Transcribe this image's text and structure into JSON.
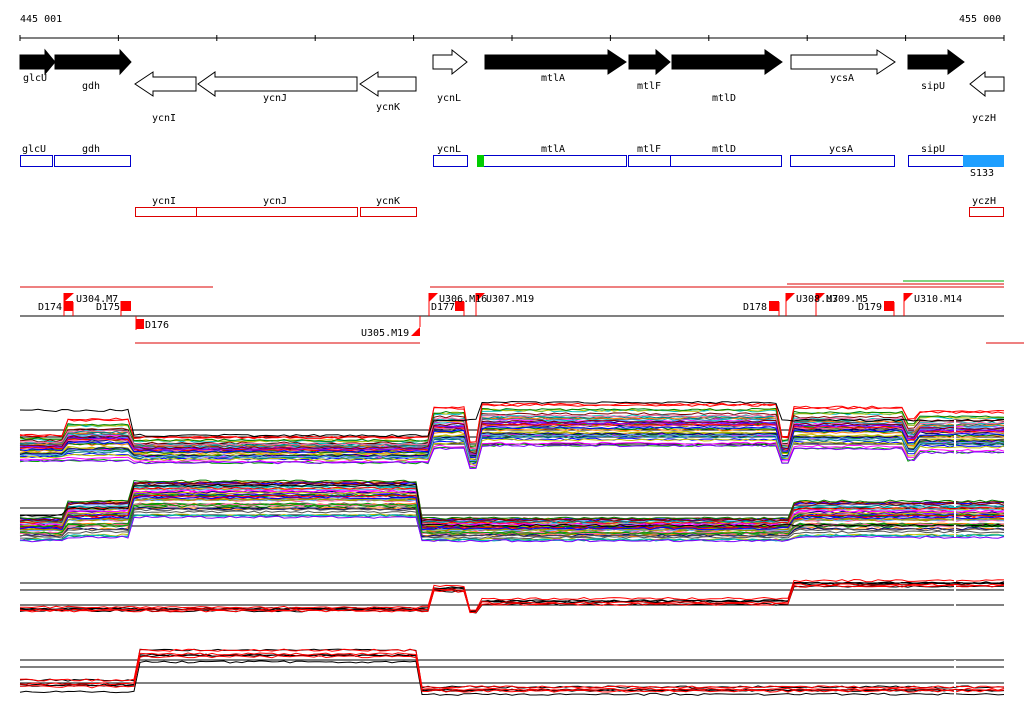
{
  "coordinates": {
    "start_label": "445 001",
    "end_label": "455 000"
  },
  "genes_top": [
    {
      "name": "glcU",
      "strand": "+",
      "fill": "#000000"
    },
    {
      "name": "gdh",
      "strand": "+",
      "fill": "#000000"
    },
    {
      "name": "ycnI",
      "strand": "-",
      "fill": "#ffffff"
    },
    {
      "name": "ycnJ",
      "strand": "-",
      "fill": "#ffffff"
    },
    {
      "name": "ycnK",
      "strand": "-",
      "fill": "#ffffff"
    },
    {
      "name": "ycnL",
      "strand": "+",
      "fill": "#ffffff"
    },
    {
      "name": "mtlA",
      "strand": "+",
      "fill": "#000000"
    },
    {
      "name": "mtlF",
      "strand": "+",
      "fill": "#000000"
    },
    {
      "name": "mtlD",
      "strand": "+",
      "fill": "#000000"
    },
    {
      "name": "ycsA",
      "strand": "+",
      "fill": "#ffffff"
    },
    {
      "name": "sipU",
      "strand": "+",
      "fill": "#000000"
    },
    {
      "name": "yczH",
      "strand": "-",
      "fill": "#ffffff"
    }
  ],
  "transcripts_plus": [
    {
      "name": "glcU"
    },
    {
      "name": "gdh"
    },
    {
      "name": "ycnL"
    },
    {
      "name": "mtlA"
    },
    {
      "name": "mtlF"
    },
    {
      "name": "mtlD"
    },
    {
      "name": "ycsA"
    },
    {
      "name": "sipU"
    },
    {
      "name": "S133"
    }
  ],
  "transcripts_minus": [
    {
      "name": "ycnI"
    },
    {
      "name": "ycnJ"
    },
    {
      "name": "ycnK"
    },
    {
      "name": "yczH"
    }
  ],
  "segment_labels_up": [
    "U304.M7",
    "U306.M16",
    "U307.M19",
    "U308.M7",
    "U309.M5",
    "U310.M14"
  ],
  "segment_labels_down": [
    "D174",
    "D175",
    "D176",
    "U305.M19",
    "D177",
    "D178",
    "D179"
  ],
  "colors": {
    "plus": "#0000cc",
    "minus": "#dd0000",
    "feature": "#ff0000",
    "cyan": "#1e9fff",
    "green": "#00cc00"
  }
}
